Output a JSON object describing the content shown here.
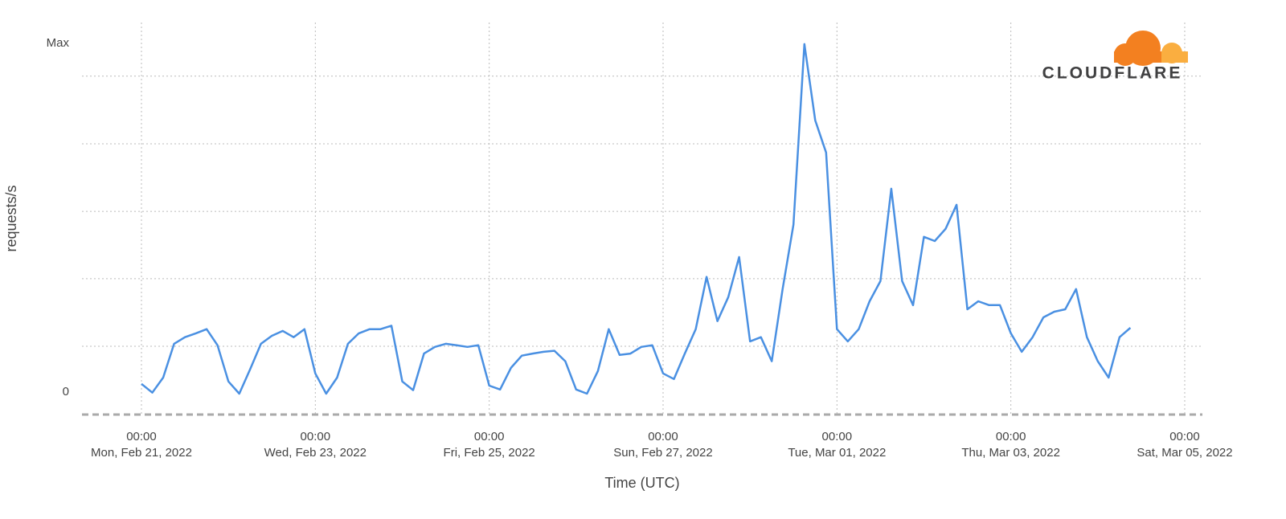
{
  "brand": {
    "logo": "CLOUDFLARE"
  },
  "chart_data": {
    "type": "line",
    "y_label": "requests/s",
    "x_label": "Time (UTC)",
    "color": "#4a90e2",
    "ylim": [
      -6.5,
      106
    ],
    "yticks": [
      0,
      {
        "value": 100,
        "label": "Max"
      }
    ],
    "ygrid": [
      13.1,
      32.5,
      51.8,
      71.2,
      90.6
    ],
    "xlim": [
      "2022-02-20T07:35",
      "2022-03-05T04:53"
    ],
    "xticks": [
      {
        "value": "2022-02-21T00:00",
        "label": [
          "00:00",
          "Mon, Feb 21, 2022"
        ]
      },
      {
        "value": "2022-02-23T00:00",
        "label": [
          "00:00",
          "Wed, Feb 23, 2022"
        ]
      },
      {
        "value": "2022-02-25T00:00",
        "label": [
          "00:00",
          "Fri, Feb 25, 2022"
        ]
      },
      {
        "value": "2022-02-27T00:00",
        "label": [
          "00:00",
          "Sun, Feb 27, 2022"
        ]
      },
      {
        "value": "2022-03-01T00:00",
        "label": [
          "00:00",
          "Tue, Mar 01, 2022"
        ]
      },
      {
        "value": "2022-03-03T00:00",
        "label": [
          "00:00",
          "Thu, Mar 03, 2022"
        ]
      },
      {
        "value": "2022-03-05T00:00",
        "label": [
          "00:00",
          "Sat, Mar 05, 2022"
        ]
      }
    ],
    "x": [
      "2022-02-21T00:00",
      "2022-02-21T03:00",
      "2022-02-21T06:00",
      "2022-02-21T09:00",
      "2022-02-21T12:00",
      "2022-02-21T15:00",
      "2022-02-21T18:00",
      "2022-02-21T21:00",
      "2022-02-22T00:00",
      "2022-02-22T03:00",
      "2022-02-22T06:00",
      "2022-02-22T09:00",
      "2022-02-22T12:00",
      "2022-02-22T15:00",
      "2022-02-22T18:00",
      "2022-02-22T21:00",
      "2022-02-23T00:00",
      "2022-02-23T03:00",
      "2022-02-23T06:00",
      "2022-02-23T09:00",
      "2022-02-23T12:00",
      "2022-02-23T15:00",
      "2022-02-23T18:00",
      "2022-02-23T21:00",
      "2022-02-24T00:00",
      "2022-02-24T03:00",
      "2022-02-24T06:00",
      "2022-02-24T09:00",
      "2022-02-24T12:00",
      "2022-02-24T15:00",
      "2022-02-24T18:00",
      "2022-02-24T21:00",
      "2022-02-25T00:00",
      "2022-02-25T03:00",
      "2022-02-25T06:00",
      "2022-02-25T09:00",
      "2022-02-25T12:00",
      "2022-02-25T15:00",
      "2022-02-25T18:00",
      "2022-02-25T21:00",
      "2022-02-26T00:00",
      "2022-02-26T03:00",
      "2022-02-26T06:00",
      "2022-02-26T09:00",
      "2022-02-26T12:00",
      "2022-02-26T15:00",
      "2022-02-26T18:00",
      "2022-02-26T21:00",
      "2022-02-27T00:00",
      "2022-02-27T03:00",
      "2022-02-27T06:00",
      "2022-02-27T09:00",
      "2022-02-27T12:00",
      "2022-02-27T15:00",
      "2022-02-27T18:00",
      "2022-02-27T21:00",
      "2022-02-28T00:00",
      "2022-02-28T03:00",
      "2022-02-28T06:00",
      "2022-02-28T09:00",
      "2022-02-28T12:00",
      "2022-02-28T15:00",
      "2022-02-28T18:00",
      "2022-02-28T21:00",
      "2022-03-01T00:00",
      "2022-03-01T03:00",
      "2022-03-01T06:00",
      "2022-03-01T09:00",
      "2022-03-01T12:00",
      "2022-03-01T15:00",
      "2022-03-01T18:00",
      "2022-03-01T21:00",
      "2022-03-02T00:00",
      "2022-03-02T03:00",
      "2022-03-02T06:00",
      "2022-03-02T09:00",
      "2022-03-02T12:00",
      "2022-03-02T15:00",
      "2022-03-02T18:00",
      "2022-03-02T21:00",
      "2022-03-03T00:00",
      "2022-03-03T03:00",
      "2022-03-03T06:00",
      "2022-03-03T09:00",
      "2022-03-03T12:00",
      "2022-03-03T15:00",
      "2022-03-03T18:00",
      "2022-03-03T21:00",
      "2022-03-04T00:00",
      "2022-03-04T03:00",
      "2022-03-04T06:00",
      "2022-03-04T09:00"
    ],
    "values": [
      2.3,
      -0.2,
      4.1,
      13.8,
      15.7,
      16.8,
      18,
      13.4,
      3,
      -0.5,
      6.5,
      13.8,
      16.1,
      17.5,
      15.7,
      18,
      5.3,
      -0.5,
      4.1,
      13.8,
      16.8,
      18,
      18,
      19,
      3,
      0.5,
      11,
      12.9,
      13.8,
      13.4,
      12.9,
      13.4,
      1.8,
      0.7,
      6.9,
      10.4,
      11,
      11.5,
      11.8,
      8.8,
      0.7,
      -0.5,
      6,
      18,
      10.6,
      11,
      12.9,
      13.4,
      5.3,
      3.7,
      11,
      18,
      33,
      20.3,
      27.2,
      38.7,
      14.5,
      15.7,
      8.8,
      29.5,
      48,
      99.8,
      77.9,
      68.7,
      18,
      14.5,
      18,
      26,
      31.8,
      58.3,
      31.8,
      24.9,
      44.5,
      43.3,
      46.8,
      53.7,
      23.7,
      26,
      24.9,
      24.9,
      16.8,
      11.5,
      15.7,
      21.4,
      23,
      23.7,
      29.5,
      15.7,
      8.8,
      4.1,
      15.7,
      18.4
    ]
  }
}
